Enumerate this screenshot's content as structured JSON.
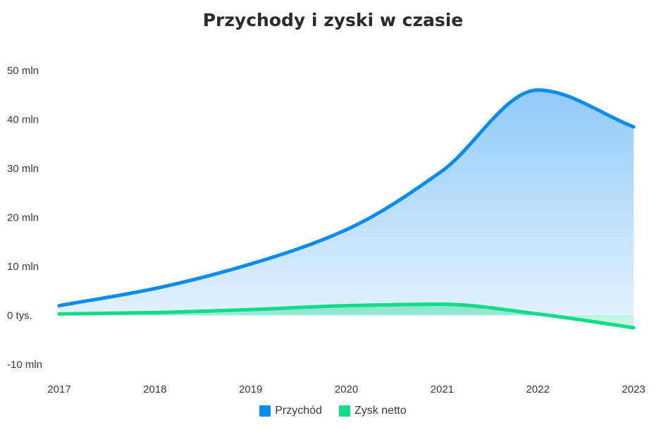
{
  "chart_data": {
    "type": "area",
    "title": "Przychody i zyski w czasie",
    "x": [
      "2017",
      "2018",
      "2019",
      "2020",
      "2021",
      "2022",
      "2023"
    ],
    "ylim": [
      -10,
      50
    ],
    "y_ticks": [
      {
        "value": 50,
        "label": "50 mln"
      },
      {
        "value": 40,
        "label": "40 mln"
      },
      {
        "value": 30,
        "label": "30 mln"
      },
      {
        "value": 20,
        "label": "20 mln"
      },
      {
        "value": 10,
        "label": "10 mln"
      },
      {
        "value": 0,
        "label": "0 tys."
      },
      {
        "value": -10,
        "label": "-10 mln"
      }
    ],
    "series": [
      {
        "name": "Przychód",
        "color": "#0a8bf0",
        "values": [
          2,
          5.5,
          10.5,
          17.5,
          29.5,
          46,
          38.5
        ]
      },
      {
        "name": "Zysk netto",
        "color": "#12db8a",
        "values": [
          0.3,
          0.6,
          1.2,
          2.0,
          2.3,
          0.3,
          -2.5
        ]
      }
    ],
    "grid": false,
    "legend_position": "bottom"
  }
}
